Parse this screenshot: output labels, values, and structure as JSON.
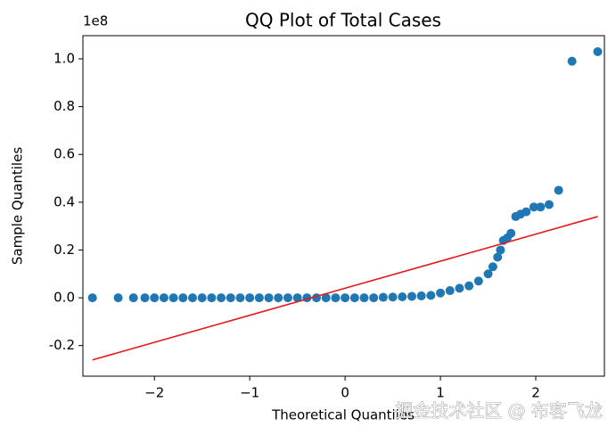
{
  "chart_data": {
    "type": "scatter",
    "title": "QQ Plot of Total Cases",
    "x_label": "Theoretical Quantiles",
    "y_label": "Sample Quantiles",
    "y_offset_label": "1e8",
    "xlim": [
      -2.75,
      2.72
    ],
    "ylim": [
      -0.328,
      1.097
    ],
    "xticks": [
      {
        "value": -2,
        "label": "−2"
      },
      {
        "value": -1,
        "label": "−1"
      },
      0,
      1,
      2
    ],
    "yticks": [
      {
        "value": -0.2,
        "label": "-0.2"
      },
      {
        "value": 0,
        "label": "0.0"
      },
      0.2,
      0.4,
      0.6,
      0.8,
      {
        "value": 1,
        "label": "1.0"
      }
    ],
    "color": "#1f77b4",
    "x": [
      -2.65,
      -2.38,
      -2.22,
      -2.1,
      -2.0,
      -1.9,
      -1.8,
      -1.7,
      -1.6,
      -1.5,
      -1.4,
      -1.3,
      -1.2,
      -1.1,
      -1.0,
      -0.9,
      -0.8,
      -0.7,
      -0.6,
      -0.5,
      -0.4,
      -0.3,
      -0.2,
      -0.1,
      0,
      0.1,
      0.2,
      0.3,
      0.4,
      0.5,
      0.6,
      0.7,
      0.8,
      0.9,
      1.0,
      1.1,
      1.2,
      1.3,
      1.4,
      1.5,
      1.55,
      1.6,
      1.63,
      1.66,
      1.7,
      1.74,
      1.79,
      1.84,
      1.9,
      1.98,
      2.05,
      2.14,
      2.24,
      2.38,
      2.65
    ],
    "values": [
      0,
      0,
      0,
      0,
      0,
      0,
      0,
      0,
      0,
      0,
      0,
      0,
      0,
      0,
      0,
      0,
      0,
      0,
      0,
      0,
      0,
      0,
      0,
      0,
      0,
      0,
      0,
      0,
      0.002,
      0.003,
      0.004,
      0.006,
      0.008,
      0.01,
      0.02,
      0.03,
      0.04,
      0.05,
      0.07,
      0.1,
      0.13,
      0.17,
      0.2,
      0.24,
      0.25,
      0.27,
      0.34,
      0.35,
      0.36,
      0.38,
      0.38,
      0.39,
      0.45,
      0.99,
      1.03
    ],
    "fit_line": {
      "color": "#e41a1c",
      "x": [
        -2.65,
        2.65
      ],
      "values": [
        -0.26,
        0.34
      ]
    },
    "watermark": "掘金技术社区 @ 布客飞龙"
  }
}
